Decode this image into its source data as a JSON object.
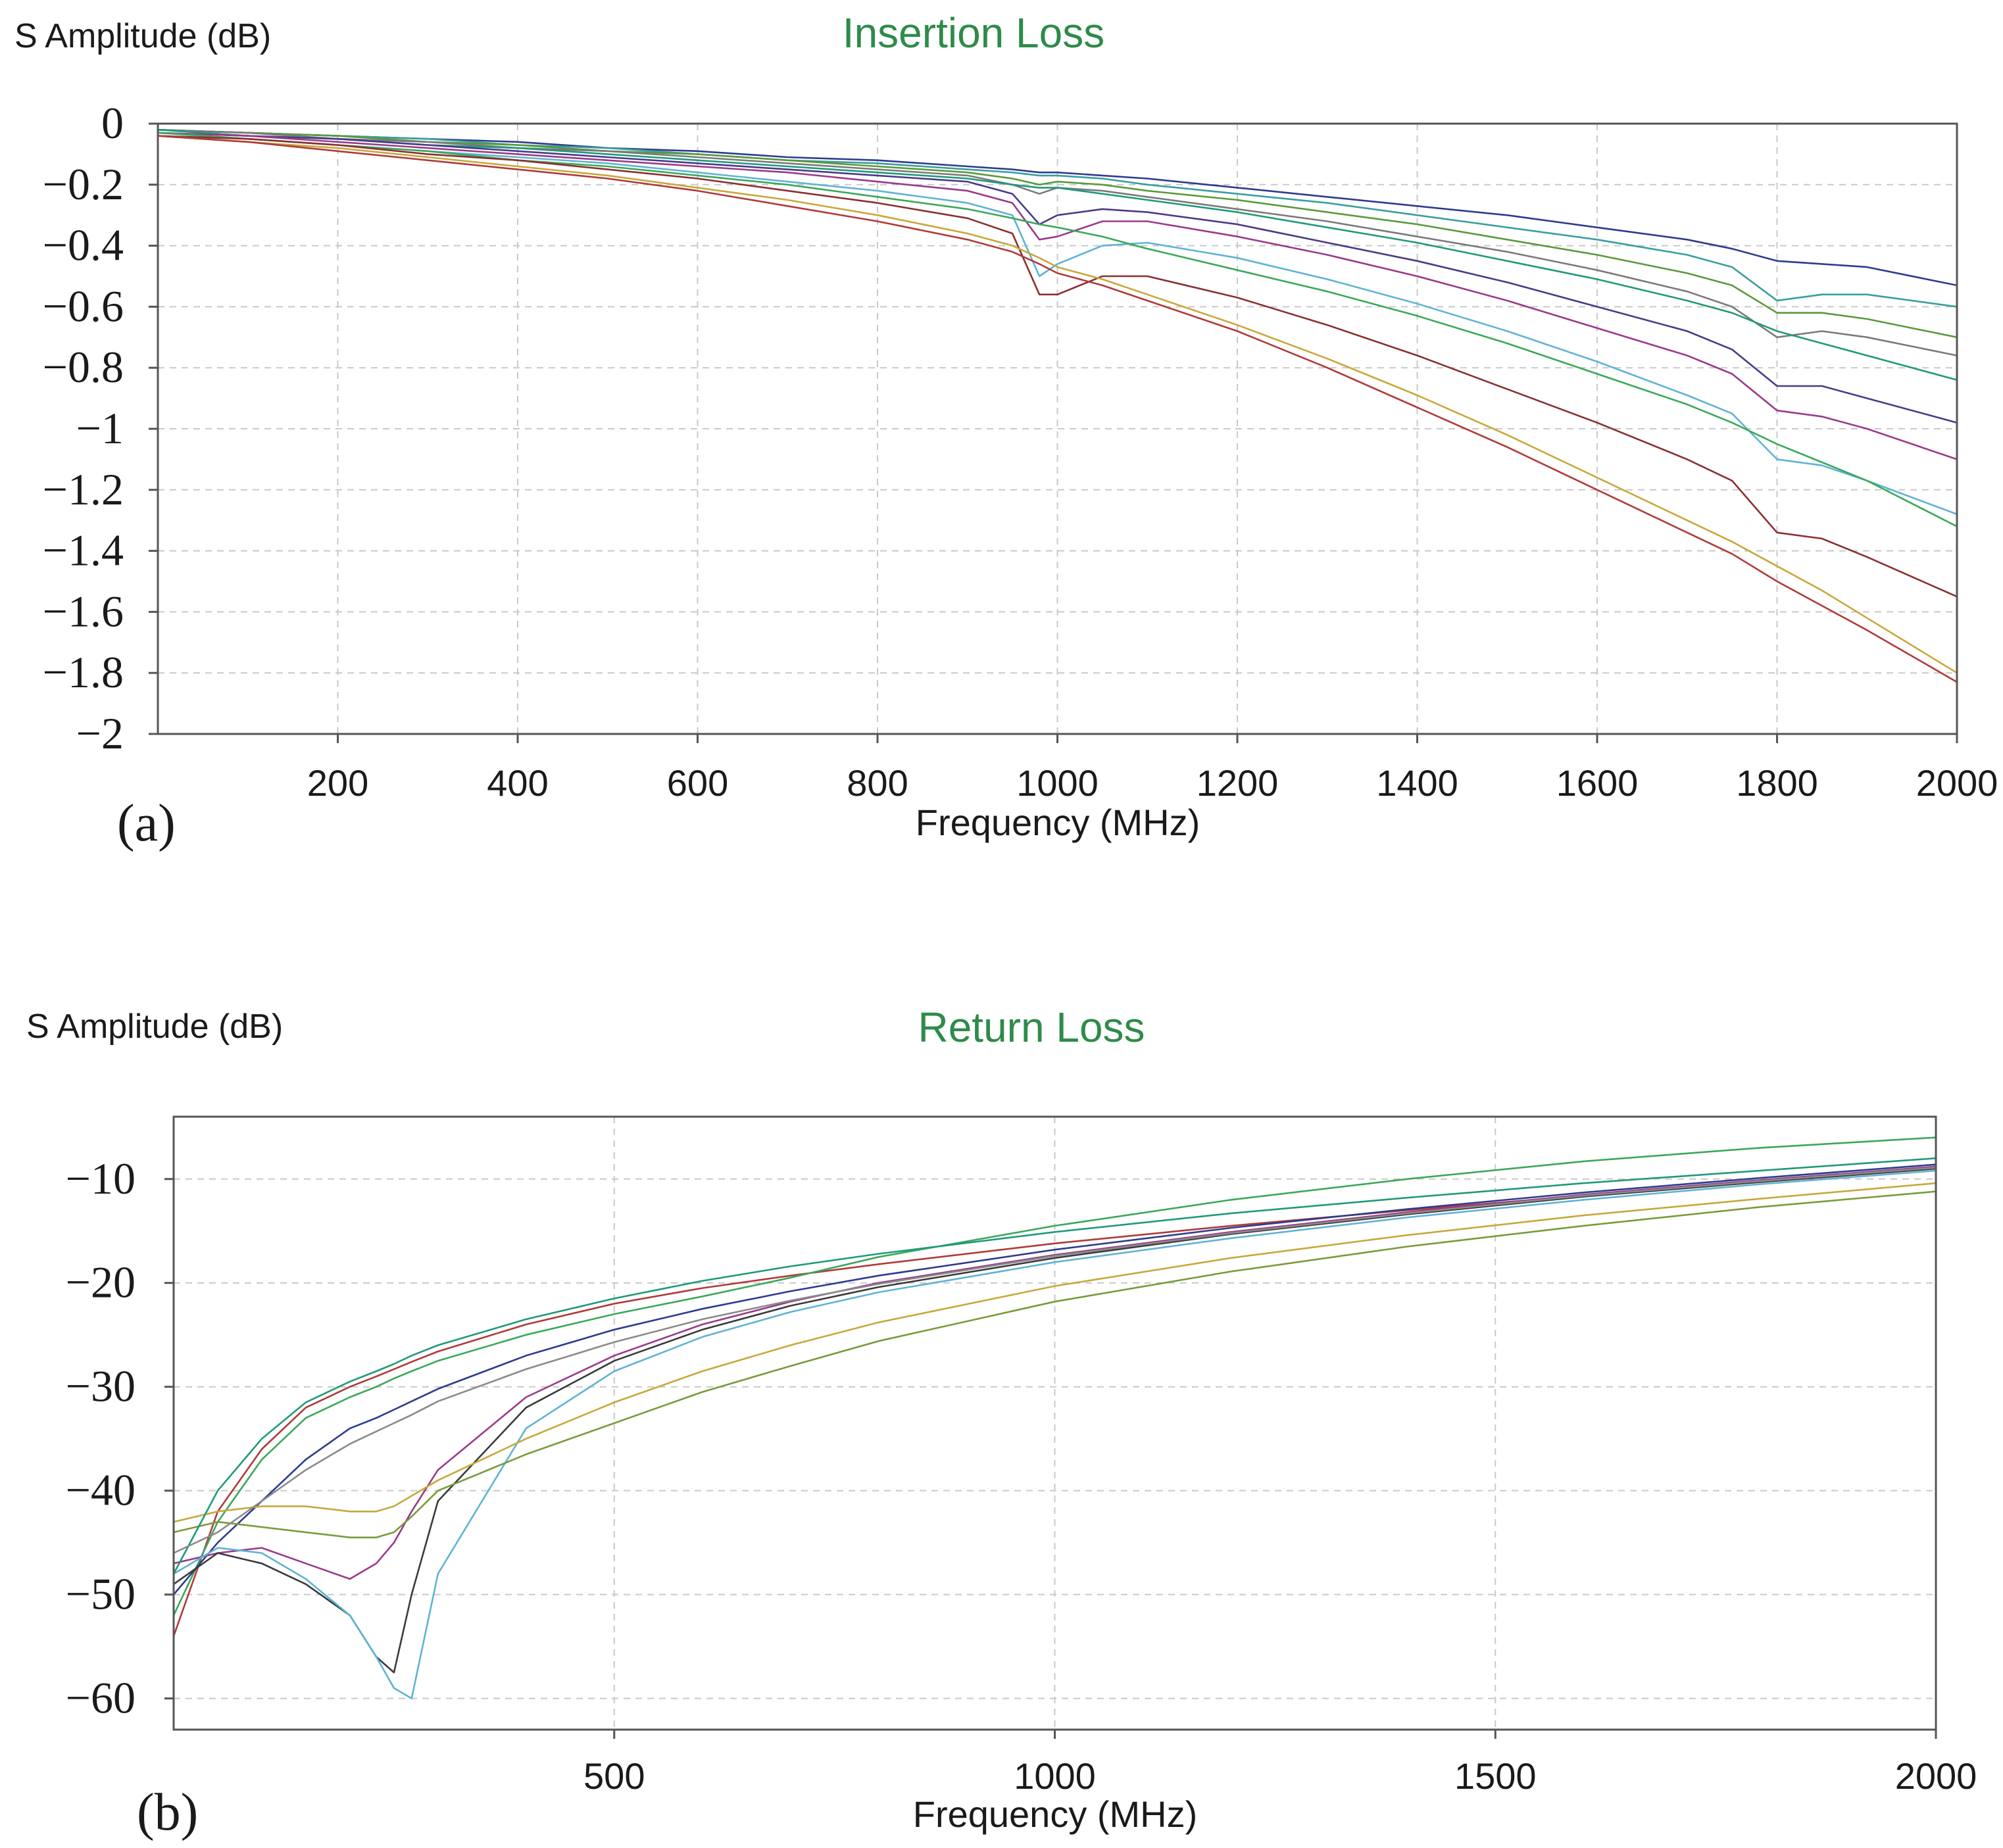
{
  "chart_data": [
    {
      "type": "line",
      "panel": "(a)",
      "title": "Insertion Loss",
      "ylabel": "S Amplitude (dB)",
      "xlabel": "Frequency (MHz)",
      "xlim": [
        0,
        2000
      ],
      "ylim": [
        -2,
        0
      ],
      "xticks": [
        200,
        400,
        600,
        800,
        1000,
        1200,
        1400,
        1600,
        1800,
        2000
      ],
      "yticks": [
        0,
        -0.2,
        -0.4,
        -0.6,
        -0.8,
        -1,
        -1.2,
        -1.4,
        -1.6,
        -1.8,
        -2
      ],
      "ytick_labels": [
        "0",
        "−0.2",
        "−0.4",
        "−0.6",
        "−0.8",
        "−1",
        "−1.2",
        "−1.4",
        "−1.6",
        "−1.8",
        "−2"
      ],
      "grid": true,
      "x": [
        0,
        100,
        200,
        300,
        400,
        500,
        600,
        700,
        800,
        900,
        950,
        980,
        1000,
        1050,
        1100,
        1200,
        1300,
        1400,
        1500,
        1600,
        1700,
        1750,
        1800,
        1850,
        1900,
        2000
      ],
      "series": [
        {
          "color": "#2e3b8f",
          "values": [
            -0.02,
            -0.03,
            -0.04,
            -0.05,
            -0.06,
            -0.08,
            -0.09,
            -0.11,
            -0.12,
            -0.14,
            -0.15,
            -0.16,
            -0.16,
            -0.17,
            -0.18,
            -0.21,
            -0.24,
            -0.27,
            -0.3,
            -0.34,
            -0.38,
            -0.41,
            -0.45,
            -0.46,
            -0.47,
            -0.53
          ]
        },
        {
          "color": "#3a9e9e",
          "values": [
            -0.02,
            -0.03,
            -0.04,
            -0.05,
            -0.07,
            -0.08,
            -0.1,
            -0.12,
            -0.13,
            -0.15,
            -0.16,
            -0.17,
            -0.17,
            -0.18,
            -0.2,
            -0.23,
            -0.26,
            -0.3,
            -0.34,
            -0.38,
            -0.43,
            -0.47,
            -0.58,
            -0.56,
            -0.56,
            -0.6
          ]
        },
        {
          "color": "#5a9a3a",
          "values": [
            -0.02,
            -0.03,
            -0.04,
            -0.06,
            -0.07,
            -0.09,
            -0.1,
            -0.12,
            -0.14,
            -0.16,
            -0.18,
            -0.2,
            -0.19,
            -0.2,
            -0.22,
            -0.25,
            -0.29,
            -0.33,
            -0.38,
            -0.43,
            -0.49,
            -0.53,
            -0.62,
            -0.62,
            -0.64,
            -0.7
          ]
        },
        {
          "color": "#7a7a7a",
          "values": [
            -0.02,
            -0.03,
            -0.05,
            -0.06,
            -0.08,
            -0.09,
            -0.11,
            -0.13,
            -0.15,
            -0.17,
            -0.2,
            -0.23,
            -0.21,
            -0.22,
            -0.24,
            -0.28,
            -0.32,
            -0.37,
            -0.42,
            -0.48,
            -0.55,
            -0.6,
            -0.7,
            -0.68,
            -0.7,
            -0.76
          ]
        },
        {
          "color": "#1f9a7a",
          "values": [
            -0.02,
            -0.04,
            -0.05,
            -0.07,
            -0.08,
            -0.1,
            -0.12,
            -0.14,
            -0.16,
            -0.18,
            -0.2,
            -0.21,
            -0.21,
            -0.23,
            -0.25,
            -0.29,
            -0.34,
            -0.39,
            -0.45,
            -0.51,
            -0.58,
            -0.62,
            -0.68,
            -0.72,
            -0.76,
            -0.84
          ]
        },
        {
          "color": "#4a3a8a",
          "values": [
            -0.03,
            -0.04,
            -0.05,
            -0.07,
            -0.09,
            -0.11,
            -0.13,
            -0.15,
            -0.17,
            -0.19,
            -0.23,
            -0.33,
            -0.3,
            -0.28,
            -0.29,
            -0.33,
            -0.39,
            -0.45,
            -0.52,
            -0.6,
            -0.68,
            -0.74,
            -0.86,
            -0.86,
            -0.9,
            -0.98
          ]
        },
        {
          "color": "#9a3a8a",
          "values": [
            -0.03,
            -0.04,
            -0.06,
            -0.08,
            -0.1,
            -0.12,
            -0.14,
            -0.16,
            -0.19,
            -0.22,
            -0.26,
            -0.38,
            -0.37,
            -0.32,
            -0.32,
            -0.37,
            -0.43,
            -0.5,
            -0.58,
            -0.67,
            -0.76,
            -0.82,
            -0.94,
            -0.96,
            -1.0,
            -1.1
          ]
        },
        {
          "color": "#5fb3d4",
          "values": [
            -0.03,
            -0.05,
            -0.07,
            -0.09,
            -0.11,
            -0.13,
            -0.16,
            -0.19,
            -0.22,
            -0.26,
            -0.3,
            -0.5,
            -0.46,
            -0.4,
            -0.39,
            -0.44,
            -0.51,
            -0.59,
            -0.68,
            -0.78,
            -0.89,
            -0.95,
            -1.1,
            -1.12,
            -1.17,
            -1.28
          ]
        },
        {
          "color": "#3aa85a",
          "values": [
            -0.03,
            -0.05,
            -0.07,
            -0.09,
            -0.12,
            -0.14,
            -0.17,
            -0.2,
            -0.24,
            -0.28,
            -0.31,
            -0.33,
            -0.34,
            -0.37,
            -0.41,
            -0.48,
            -0.55,
            -0.63,
            -0.72,
            -0.82,
            -0.92,
            -0.98,
            -1.05,
            -1.11,
            -1.17,
            -1.32
          ]
        },
        {
          "color": "#8a3030",
          "values": [
            -0.04,
            -0.05,
            -0.07,
            -0.1,
            -0.12,
            -0.15,
            -0.18,
            -0.22,
            -0.26,
            -0.31,
            -0.36,
            -0.56,
            -0.56,
            -0.5,
            -0.5,
            -0.57,
            -0.66,
            -0.76,
            -0.87,
            -0.98,
            -1.1,
            -1.17,
            -1.34,
            -1.36,
            -1.42,
            -1.55
          ]
        },
        {
          "color": "#c8a83a",
          "values": [
            -0.04,
            -0.06,
            -0.08,
            -0.11,
            -0.14,
            -0.17,
            -0.21,
            -0.25,
            -0.3,
            -0.36,
            -0.4,
            -0.44,
            -0.47,
            -0.51,
            -0.56,
            -0.66,
            -0.77,
            -0.89,
            -1.02,
            -1.16,
            -1.3,
            -1.37,
            -1.45,
            -1.53,
            -1.62,
            -1.8
          ]
        },
        {
          "color": "#b03a3a",
          "values": [
            -0.04,
            -0.06,
            -0.09,
            -0.12,
            -0.15,
            -0.18,
            -0.22,
            -0.27,
            -0.32,
            -0.38,
            -0.42,
            -0.46,
            -0.49,
            -0.53,
            -0.58,
            -0.68,
            -0.8,
            -0.93,
            -1.06,
            -1.2,
            -1.34,
            -1.41,
            -1.5,
            -1.58,
            -1.66,
            -1.83
          ]
        }
      ]
    },
    {
      "type": "line",
      "panel": "(b)",
      "title": "Return Loss",
      "ylabel": "S Amplitude (dB)",
      "xlabel": "Frequency (MHz)",
      "xlim": [
        0,
        2000
      ],
      "ylim": [
        -63,
        -4
      ],
      "xticks": [
        500,
        1000,
        1500,
        2000
      ],
      "yticks": [
        -10,
        -20,
        -30,
        -40,
        -50,
        -60
      ],
      "ytick_labels": [
        "−10",
        "−20",
        "−30",
        "−40",
        "−50",
        "−60"
      ],
      "grid": true,
      "x": [
        0,
        50,
        100,
        150,
        200,
        230,
        250,
        270,
        300,
        400,
        500,
        600,
        700,
        800,
        1000,
        1200,
        1400,
        1600,
        1800,
        2000
      ],
      "series": [
        {
          "color": "#b03a3a",
          "values": [
            -54,
            -42,
            -36,
            -32,
            -30,
            -29,
            -28.3,
            -27.6,
            -26.6,
            -24,
            -22,
            -20.5,
            -19.3,
            -18.2,
            -16.2,
            -14.5,
            -13,
            -11.6,
            -10.3,
            -9
          ]
        },
        {
          "color": "#3aa85a",
          "values": [
            -52,
            -43,
            -37,
            -33,
            -31,
            -30,
            -29.2,
            -28.5,
            -27.5,
            -25,
            -23,
            -21.3,
            -19.5,
            -17.5,
            -14.5,
            -12,
            -10,
            -8.3,
            -7,
            -6
          ]
        },
        {
          "color": "#2e3b8f",
          "values": [
            -50,
            -45,
            -41,
            -37,
            -34,
            -33,
            -32.2,
            -31.4,
            -30.2,
            -27,
            -24.5,
            -22.5,
            -20.8,
            -19.3,
            -16.8,
            -14.7,
            -12.9,
            -11.3,
            -9.9,
            -8.6
          ]
        },
        {
          "color": "#9a3a8a",
          "values": [
            -47,
            -46,
            -45.5,
            -47,
            -48.5,
            -47,
            -45,
            -42,
            -38,
            -31,
            -27,
            -24,
            -21.8,
            -20,
            -17.3,
            -15.1,
            -13.2,
            -11.5,
            -10.1,
            -8.8
          ]
        },
        {
          "color": "#3a3a3a",
          "values": [
            -49,
            -46,
            -47,
            -49,
            -52,
            -56,
            -57.5,
            -50,
            -41,
            -32,
            -27.5,
            -24.5,
            -22.2,
            -20.4,
            -17.6,
            -15.3,
            -13.4,
            -11.7,
            -10.3,
            -9
          ]
        },
        {
          "color": "#5fb3d4",
          "values": [
            -48,
            -45.5,
            -46,
            -48.5,
            -52,
            -56,
            -59,
            -60,
            -48,
            -34,
            -28.5,
            -25.2,
            -22.8,
            -20.9,
            -18,
            -15.7,
            -13.7,
            -12,
            -10.5,
            -9.2
          ]
        },
        {
          "color": "#c8a83a",
          "values": [
            -43,
            -42,
            -41.5,
            -41.5,
            -42,
            -42,
            -41.5,
            -40.5,
            -39,
            -35,
            -31.5,
            -28.5,
            -26,
            -23.8,
            -20.3,
            -17.6,
            -15.4,
            -13.5,
            -11.9,
            -10.4
          ]
        },
        {
          "color": "#7a9a3a",
          "values": [
            -44,
            -43,
            -43.5,
            -44,
            -44.5,
            -44.5,
            -44,
            -42.5,
            -40,
            -36.5,
            -33.5,
            -30.5,
            -28,
            -25.6,
            -21.8,
            -18.9,
            -16.5,
            -14.5,
            -12.7,
            -11.2
          ]
        },
        {
          "color": "#1f9a7a",
          "values": [
            -48,
            -40,
            -35,
            -31.5,
            -29.5,
            -28.5,
            -27.8,
            -27,
            -26,
            -23.5,
            -21.5,
            -19.8,
            -18.4,
            -17.2,
            -15.1,
            -13.3,
            -11.8,
            -10.4,
            -9.2,
            -8
          ]
        },
        {
          "color": "#8a8a8a",
          "values": [
            -46,
            -44,
            -41,
            -38,
            -35.5,
            -34.3,
            -33.5,
            -32.7,
            -31.4,
            -28.3,
            -25.7,
            -23.5,
            -21.7,
            -20.1,
            -17.4,
            -15.2,
            -13.3,
            -11.6,
            -10.2,
            -8.9
          ]
        }
      ]
    }
  ]
}
